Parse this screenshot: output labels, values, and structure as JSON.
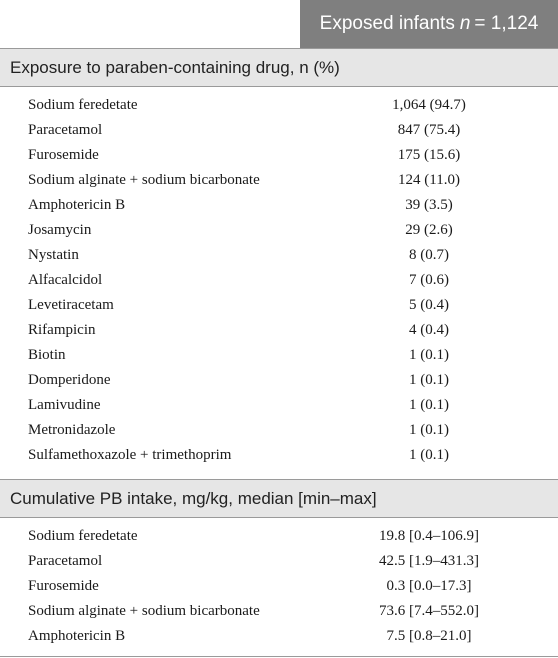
{
  "header": {
    "column_label": "Exposed infants",
    "n_symbol": "n",
    "n_value": "= 1,124"
  },
  "sections": [
    {
      "title": "Exposure to paraben-containing drug, n (%)",
      "rows": [
        {
          "label": "Sodium feredetate",
          "value": "1,064 (94.7)"
        },
        {
          "label": "Paracetamol",
          "value": "847 (75.4)"
        },
        {
          "label": "Furosemide",
          "value": "175 (15.6)"
        },
        {
          "label": "Sodium alginate + sodium bicarbonate",
          "value": "124 (11.0)"
        },
        {
          "label": "Amphotericin B",
          "value": "39 (3.5)"
        },
        {
          "label": "Josamycin",
          "value": "29 (2.6)"
        },
        {
          "label": "Nystatin",
          "value": "8 (0.7)"
        },
        {
          "label": "Alfacalcidol",
          "value": "7 (0.6)"
        },
        {
          "label": "Levetiracetam",
          "value": "5 (0.4)"
        },
        {
          "label": "Rifampicin",
          "value": "4 (0.4)"
        },
        {
          "label": "Biotin",
          "value": "1 (0.1)"
        },
        {
          "label": "Domperidone",
          "value": "1 (0.1)"
        },
        {
          "label": "Lamivudine",
          "value": "1 (0.1)"
        },
        {
          "label": "Metronidazole",
          "value": "1 (0.1)"
        },
        {
          "label": "Sulfamethoxazole + trimethoprim",
          "value": "1 (0.1)"
        }
      ]
    },
    {
      "title": "Cumulative PB intake, mg/kg, median [min–max]",
      "rows": [
        {
          "label": "Sodium feredetate",
          "value": "19.8 [0.4–106.9]"
        },
        {
          "label": "Paracetamol",
          "value": "42.5 [1.9–431.3]"
        },
        {
          "label": "Furosemide",
          "value": "0.3 [0.0–17.3]"
        },
        {
          "label": "Sodium alginate + sodium bicarbonate",
          "value": "73.6 [7.4–552.0]"
        },
        {
          "label": "Amphotericin B",
          "value": "7.5 [0.8–21.0]"
        }
      ]
    }
  ]
}
